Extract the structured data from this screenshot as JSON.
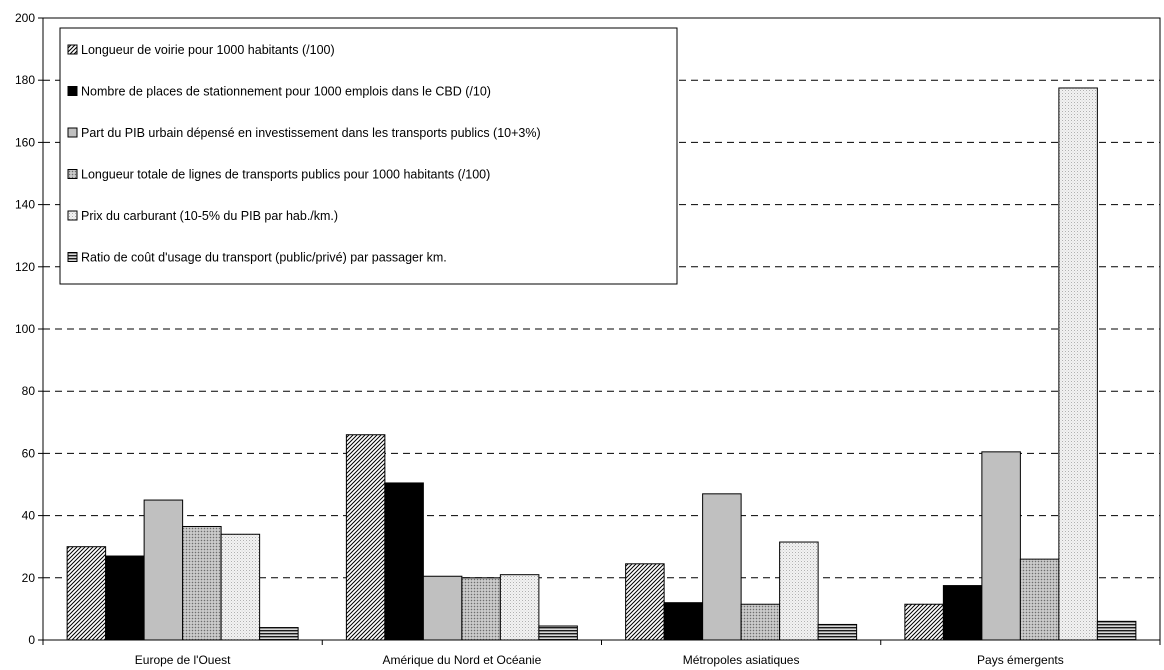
{
  "chart_data": {
    "type": "bar",
    "title": "",
    "xlabel": "",
    "ylabel": "",
    "ylim": [
      0,
      200
    ],
    "yticks": [
      0,
      20,
      40,
      60,
      80,
      100,
      120,
      140,
      160,
      180,
      200
    ],
    "grid": "horizontal-dashed",
    "legend_position": "top-left",
    "categories": [
      "Europe de l'Ouest",
      "Amérique du Nord et Océanie",
      "Métropoles asiatiques",
      "Pays émergents"
    ],
    "series": [
      {
        "name": "Longueur de voirie pour 1000 habitants (/100)",
        "values": [
          30,
          66,
          24.5,
          11.5
        ],
        "pattern": "diagonal-hatch",
        "color": "#000000"
      },
      {
        "name": "Nombre de places de stationnement pour 1000 emplois dans le CBD (/10)",
        "values": [
          27,
          50.5,
          12,
          17.5
        ],
        "pattern": "solid",
        "color": "#000000"
      },
      {
        "name": "Part du PIB urbain dépensé en investissement dans les transports publics (10+3%)",
        "values": [
          45,
          20.5,
          47,
          60.5
        ],
        "pattern": "solid",
        "color": "#c0c0c0"
      },
      {
        "name": "Longueur totale de lignes de transports publics pour 1000 habitants (/100)",
        "values": [
          36.5,
          20,
          11.5,
          26
        ],
        "pattern": "dotted-grey",
        "color": "#a8a8a8"
      },
      {
        "name": "Prix du carburant (10-5% du PIB par hab./km.)",
        "values": [
          34,
          21,
          31.5,
          177.5
        ],
        "pattern": "dotted-light",
        "color": "#e8e8e8"
      },
      {
        "name": "Ratio de coût d'usage du transport (public/privé) par passager km.",
        "values": [
          4,
          4.5,
          5,
          6
        ],
        "pattern": "horizontal-lines",
        "color": "#555555"
      }
    ]
  }
}
